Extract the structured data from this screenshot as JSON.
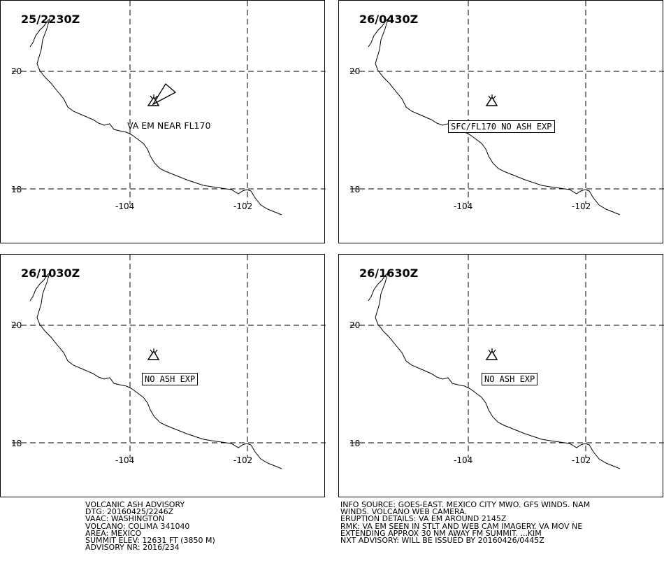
{
  "panels": [
    {
      "time": "25/2230Z",
      "label": "VA EM NEAR FL170",
      "boxed": false,
      "plume": true
    },
    {
      "time": "26/0430Z",
      "label": "SFC/FL170 NO ASH EXP",
      "boxed": true,
      "plume": false
    },
    {
      "time": "26/1030Z",
      "label": "NO ASH EXP",
      "boxed": true,
      "plume": false
    },
    {
      "time": "26/1630Z",
      "label": "NO ASH EXP",
      "boxed": true,
      "plume": false
    }
  ],
  "grid": {
    "lat_labels": [
      "20",
      "18"
    ],
    "lon_labels": [
      "-104",
      "-102"
    ]
  },
  "footer": {
    "left": [
      "VOLCANIC ASH ADVISORY",
      "DTG: 20160425/2246Z",
      "VAAC: WASHINGTON",
      "VOLCANO: COLIMA 341040",
      "AREA: MEXICO",
      "SUMMIT ELEV: 12631 FT (3850 M)",
      "ADVISORY NR: 2016/234"
    ],
    "right": [
      "INFO SOURCE: GOES-EAST. MEXICO CITY MWO. GFS WINDS. NAM",
      "WINDS. VOLCANO WEB CAMERA.",
      "ERUPTION DETAILS: VA EM AROUND 2145Z",
      "RMK: VA EM SEEN IN STLT AND WEB CAM IMAGERY. VA MOV NE",
      "EXTENDING APPROX 30 NM AWAY FM SUMMIT. ...KIM",
      "NXT ADVISORY: WILL BE ISSUED BY 20160426/0445Z"
    ]
  }
}
